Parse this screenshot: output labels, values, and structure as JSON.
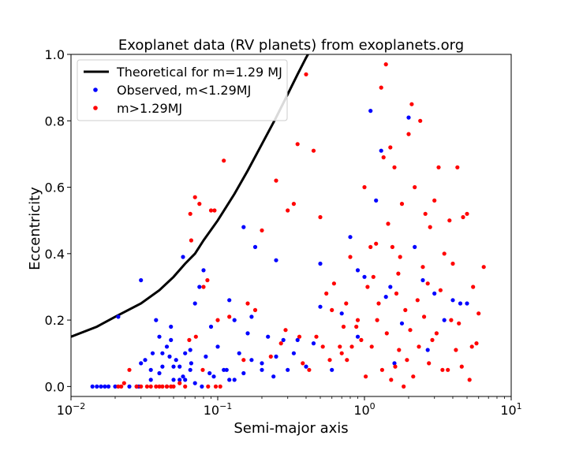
{
  "chart_data": {
    "type": "scatter",
    "title": "Exoplanet data (RV planets) from exoplanets.org",
    "xlabel": "Semi-major axis",
    "ylabel": "Eccentricity",
    "xscale": "log",
    "xlim": [
      0.01,
      10
    ],
    "ylim": [
      -0.03,
      1.0
    ],
    "x_ticks": [
      0.01,
      0.1,
      1,
      10
    ],
    "x_tick_labels": [
      {
        "base": "10",
        "exp": "−2"
      },
      {
        "base": "10",
        "exp": "−1"
      },
      {
        "base": "10",
        "exp": "0"
      },
      {
        "base": "10",
        "exp": "1"
      }
    ],
    "y_ticks": [
      0.0,
      0.2,
      0.4,
      0.6,
      0.8,
      1.0
    ],
    "y_tick_labels": [
      "0.0",
      "0.2",
      "0.4",
      "0.6",
      "0.8",
      "1.0"
    ],
    "grid": false,
    "legend_position": "top-left",
    "series": [
      {
        "name": "Theoretical for m=1.29 MJ",
        "kind": "line",
        "color": "#000000",
        "x": [
          0.01,
          0.015,
          0.02,
          0.03,
          0.04,
          0.05,
          0.06,
          0.07,
          0.08,
          0.1,
          0.13,
          0.16,
          0.2,
          0.25,
          0.3,
          0.35,
          0.4,
          0.45,
          0.5
        ],
        "y": [
          0.15,
          0.18,
          0.21,
          0.25,
          0.29,
          0.33,
          0.37,
          0.4,
          0.44,
          0.5,
          0.58,
          0.65,
          0.73,
          0.81,
          0.88,
          0.94,
          0.99,
          1.03,
          1.07
        ]
      },
      {
        "name": "Observed, m<1.29MJ",
        "kind": "scatter",
        "color": "#0000ff",
        "x": [
          0.014,
          0.015,
          0.016,
          0.017,
          0.018,
          0.02,
          0.021,
          0.025,
          0.028,
          0.03,
          0.032,
          0.035,
          0.038,
          0.04,
          0.042,
          0.045,
          0.048,
          0.05,
          0.052,
          0.055,
          0.058,
          0.06,
          0.065,
          0.07,
          0.075,
          0.08,
          0.09,
          0.1,
          0.11,
          0.12,
          0.13,
          0.14,
          0.15,
          0.16,
          0.18,
          0.2,
          0.22,
          0.25,
          0.28,
          0.3,
          0.35,
          0.4,
          0.45,
          0.5,
          0.6,
          0.7,
          0.8,
          0.9,
          1.0,
          1.1,
          1.2,
          1.3,
          1.4,
          1.5,
          1.8,
          2.0,
          2.2,
          2.5,
          3.0,
          3.5,
          4.0,
          4.5,
          5.0,
          0.029,
          0.045,
          0.055,
          0.06,
          0.07,
          0.083,
          0.094,
          0.13,
          0.15,
          0.17,
          0.2,
          0.24,
          0.33,
          0.04,
          0.05,
          0.03,
          0.065,
          0.078,
          0.115,
          0.048,
          0.058,
          0.036,
          0.5,
          0.9,
          1.6,
          2.7,
          0.25,
          0.17,
          0.047,
          0.035,
          0.066,
          0.088,
          0.12,
          0.042
        ],
        "y": [
          0.0,
          0.0,
          0.0,
          0.0,
          0.0,
          0.0,
          0.21,
          0.0,
          0.0,
          0.32,
          0.08,
          0.05,
          0.2,
          0.15,
          0.1,
          0.12,
          0.18,
          0.06,
          0.08,
          0.02,
          0.39,
          0.1,
          0.05,
          0.25,
          0.3,
          0.35,
          0.18,
          0.12,
          0.05,
          0.26,
          0.2,
          0.1,
          0.48,
          0.16,
          0.42,
          0.05,
          0.15,
          0.38,
          0.14,
          0.05,
          0.14,
          0.06,
          0.13,
          0.37,
          0.05,
          0.22,
          0.45,
          0.35,
          0.33,
          0.83,
          0.56,
          0.71,
          0.27,
          0.3,
          0.19,
          0.81,
          0.42,
          0.32,
          0.28,
          0.2,
          0.26,
          0.25,
          0.25,
          0.0,
          0.0,
          0.06,
          0.02,
          0.01,
          0.09,
          0.03,
          0.02,
          0.04,
          0.08,
          0.07,
          0.03,
          0.1,
          0.04,
          0.02,
          0.07,
          0.11,
          0.0,
          0.05,
          0.14,
          0.03,
          0.1,
          0.24,
          0.15,
          0.07,
          0.11,
          0.09,
          0.21,
          0.09,
          0.02,
          0.07,
          0.04,
          0.02,
          0.06
        ]
      },
      {
        "name": "m>1.29MJ",
        "kind": "scatter",
        "color": "#ff0000",
        "x": [
          0.021,
          0.022,
          0.023,
          0.025,
          0.028,
          0.03,
          0.033,
          0.035,
          0.038,
          0.04,
          0.042,
          0.045,
          0.048,
          0.05,
          0.055,
          0.06,
          0.065,
          0.066,
          0.07,
          0.075,
          0.08,
          0.085,
          0.09,
          0.095,
          0.1,
          0.11,
          0.12,
          0.15,
          0.18,
          0.2,
          0.25,
          0.3,
          0.35,
          0.4,
          0.45,
          0.5,
          0.55,
          0.6,
          0.7,
          0.75,
          0.8,
          0.9,
          1.0,
          1.1,
          1.2,
          1.3,
          1.35,
          1.4,
          1.5,
          1.6,
          1.7,
          1.8,
          2.0,
          2.1,
          2.2,
          2.4,
          2.6,
          2.8,
          3.0,
          3.2,
          3.5,
          3.8,
          4.0,
          4.3,
          4.7,
          5.0,
          5.5,
          6.0,
          6.5,
          0.27,
          0.33,
          0.36,
          0.38,
          0.47,
          0.52,
          0.62,
          0.68,
          0.76,
          0.88,
          0.95,
          1.05,
          1.15,
          1.25,
          1.45,
          1.55,
          1.65,
          1.75,
          1.9,
          2.3,
          2.5,
          2.7,
          2.9,
          3.3,
          3.7,
          4.2,
          4.6,
          5.2,
          5.8,
          0.064,
          0.071,
          0.079,
          0.086,
          0.097,
          0.104,
          0.16,
          0.23,
          0.29,
          0.42,
          0.58,
          0.72,
          0.82,
          1.02,
          1.12,
          1.22,
          1.32,
          1.42,
          1.52,
          1.62,
          1.72,
          1.85,
          1.95,
          2.05,
          2.15,
          2.35,
          2.55,
          2.75,
          3.1,
          3.4,
          3.9,
          4.4,
          5.4
        ],
        "y": [
          0.0,
          0.0,
          0.01,
          0.05,
          0.0,
          0.0,
          0.0,
          0.0,
          0.0,
          0.0,
          0.0,
          0.0,
          0.0,
          0.0,
          0.01,
          0.0,
          0.52,
          0.44,
          0.57,
          0.55,
          0.3,
          0.32,
          0.53,
          0.53,
          0.2,
          0.68,
          0.21,
          0.08,
          0.23,
          0.47,
          0.62,
          0.53,
          0.73,
          0.94,
          0.71,
          0.51,
          0.28,
          0.23,
          0.1,
          0.25,
          0.39,
          0.2,
          0.6,
          0.42,
          0.43,
          0.9,
          0.69,
          0.97,
          0.72,
          0.66,
          0.34,
          0.55,
          0.76,
          0.85,
          0.6,
          0.8,
          0.52,
          0.48,
          0.56,
          0.66,
          0.4,
          0.5,
          0.37,
          0.66,
          0.51,
          0.52,
          0.3,
          0.22,
          0.36,
          0.13,
          0.55,
          0.15,
          0.07,
          0.15,
          0.12,
          0.31,
          0.12,
          0.08,
          0.18,
          0.14,
          0.3,
          0.33,
          0.25,
          0.49,
          0.42,
          0.28,
          0.39,
          0.23,
          0.26,
          0.36,
          0.31,
          0.14,
          0.29,
          0.05,
          0.11,
          0.06,
          0.02,
          0.13,
          0.14,
          0.15,
          0.05,
          0.0,
          0.0,
          0.0,
          0.25,
          0.09,
          0.17,
          0.05,
          0.08,
          0.18,
          0.12,
          0.03,
          0.12,
          0.2,
          0.05,
          0.16,
          0.02,
          0.06,
          0.11,
          0.0,
          0.08,
          0.17,
          0.03,
          0.12,
          0.21,
          0.07,
          0.16,
          0.05,
          0.2,
          0.19,
          0.12
        ]
      }
    ]
  }
}
